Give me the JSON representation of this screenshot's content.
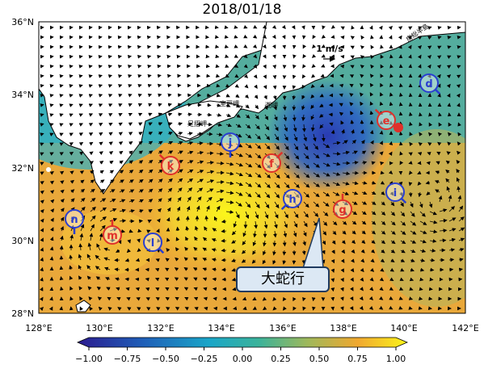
{
  "title": "2018/01/18",
  "axes": {
    "lat_ticks": [
      "36°N",
      "34°N",
      "32°N",
      "30°N",
      "28°N"
    ],
    "lon_ticks": [
      "128°E",
      "130°E",
      "132°E",
      "134°E",
      "136°E",
      "138°E",
      "140°E",
      "142°E"
    ]
  },
  "scale_label": "1 m/s",
  "place_labels": [
    "足摺岬",
    "室戸岬",
    "潮岬",
    "房総半島"
  ],
  "annotation": "大蛇行",
  "colorbar": {
    "ticks": [
      "−1.00",
      "−0.75",
      "−0.50",
      "−0.25",
      "0.00",
      "0.25",
      "0.50",
      "0.75",
      "1.00"
    ],
    "range": [
      -1.0,
      1.0
    ]
  },
  "markers": [
    {
      "id": "d",
      "type": "cyclonic",
      "color": "#2a3fd0"
    },
    {
      "id": "e",
      "type": "anticyclonic",
      "color": "#e0302a"
    },
    {
      "id": "f",
      "type": "anticyclonic",
      "color": "#e0302a"
    },
    {
      "id": "g",
      "type": "anticyclonic",
      "color": "#e0302a"
    },
    {
      "id": "h",
      "type": "cyclonic",
      "color": "#2a3fd0"
    },
    {
      "id": "i",
      "type": "cyclonic",
      "color": "#2a3fd0"
    },
    {
      "id": "j",
      "type": "cyclonic",
      "color": "#2a3fd0"
    },
    {
      "id": "k",
      "type": "anticyclonic",
      "color": "#e0302a"
    },
    {
      "id": "l",
      "type": "cyclonic",
      "color": "#2a3fd0"
    },
    {
      "id": "m",
      "type": "anticyclonic",
      "color": "#e0302a"
    },
    {
      "id": "n",
      "type": "cyclonic",
      "color": "#2a3fd0"
    }
  ]
}
